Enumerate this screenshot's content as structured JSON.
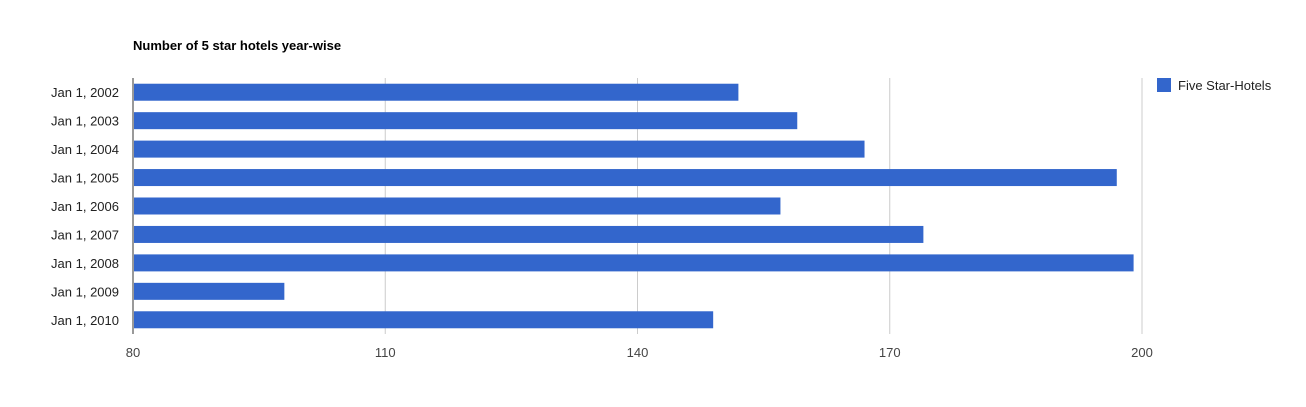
{
  "chart_data": {
    "type": "bar",
    "orientation": "horizontal",
    "title": "Number of 5 star hotels year-wise",
    "xlabel": "",
    "ylabel": "",
    "categories": [
      "Jan 1, 2002",
      "Jan 1, 2003",
      "Jan 1, 2004",
      "Jan 1, 2005",
      "Jan 1, 2006",
      "Jan 1, 2007",
      "Jan 1, 2008",
      "Jan 1, 2009",
      "Jan 1, 2010"
    ],
    "series": [
      {
        "name": "Five Star-Hotels",
        "color": "#3366cc",
        "values": [
          152,
          159,
          167,
          197,
          157,
          174,
          199,
          98,
          149
        ]
      }
    ],
    "xlim": [
      80,
      200
    ],
    "xticks": [
      "80",
      "110",
      "140",
      "170",
      "200"
    ],
    "grid": true,
    "legend_position": "right"
  }
}
